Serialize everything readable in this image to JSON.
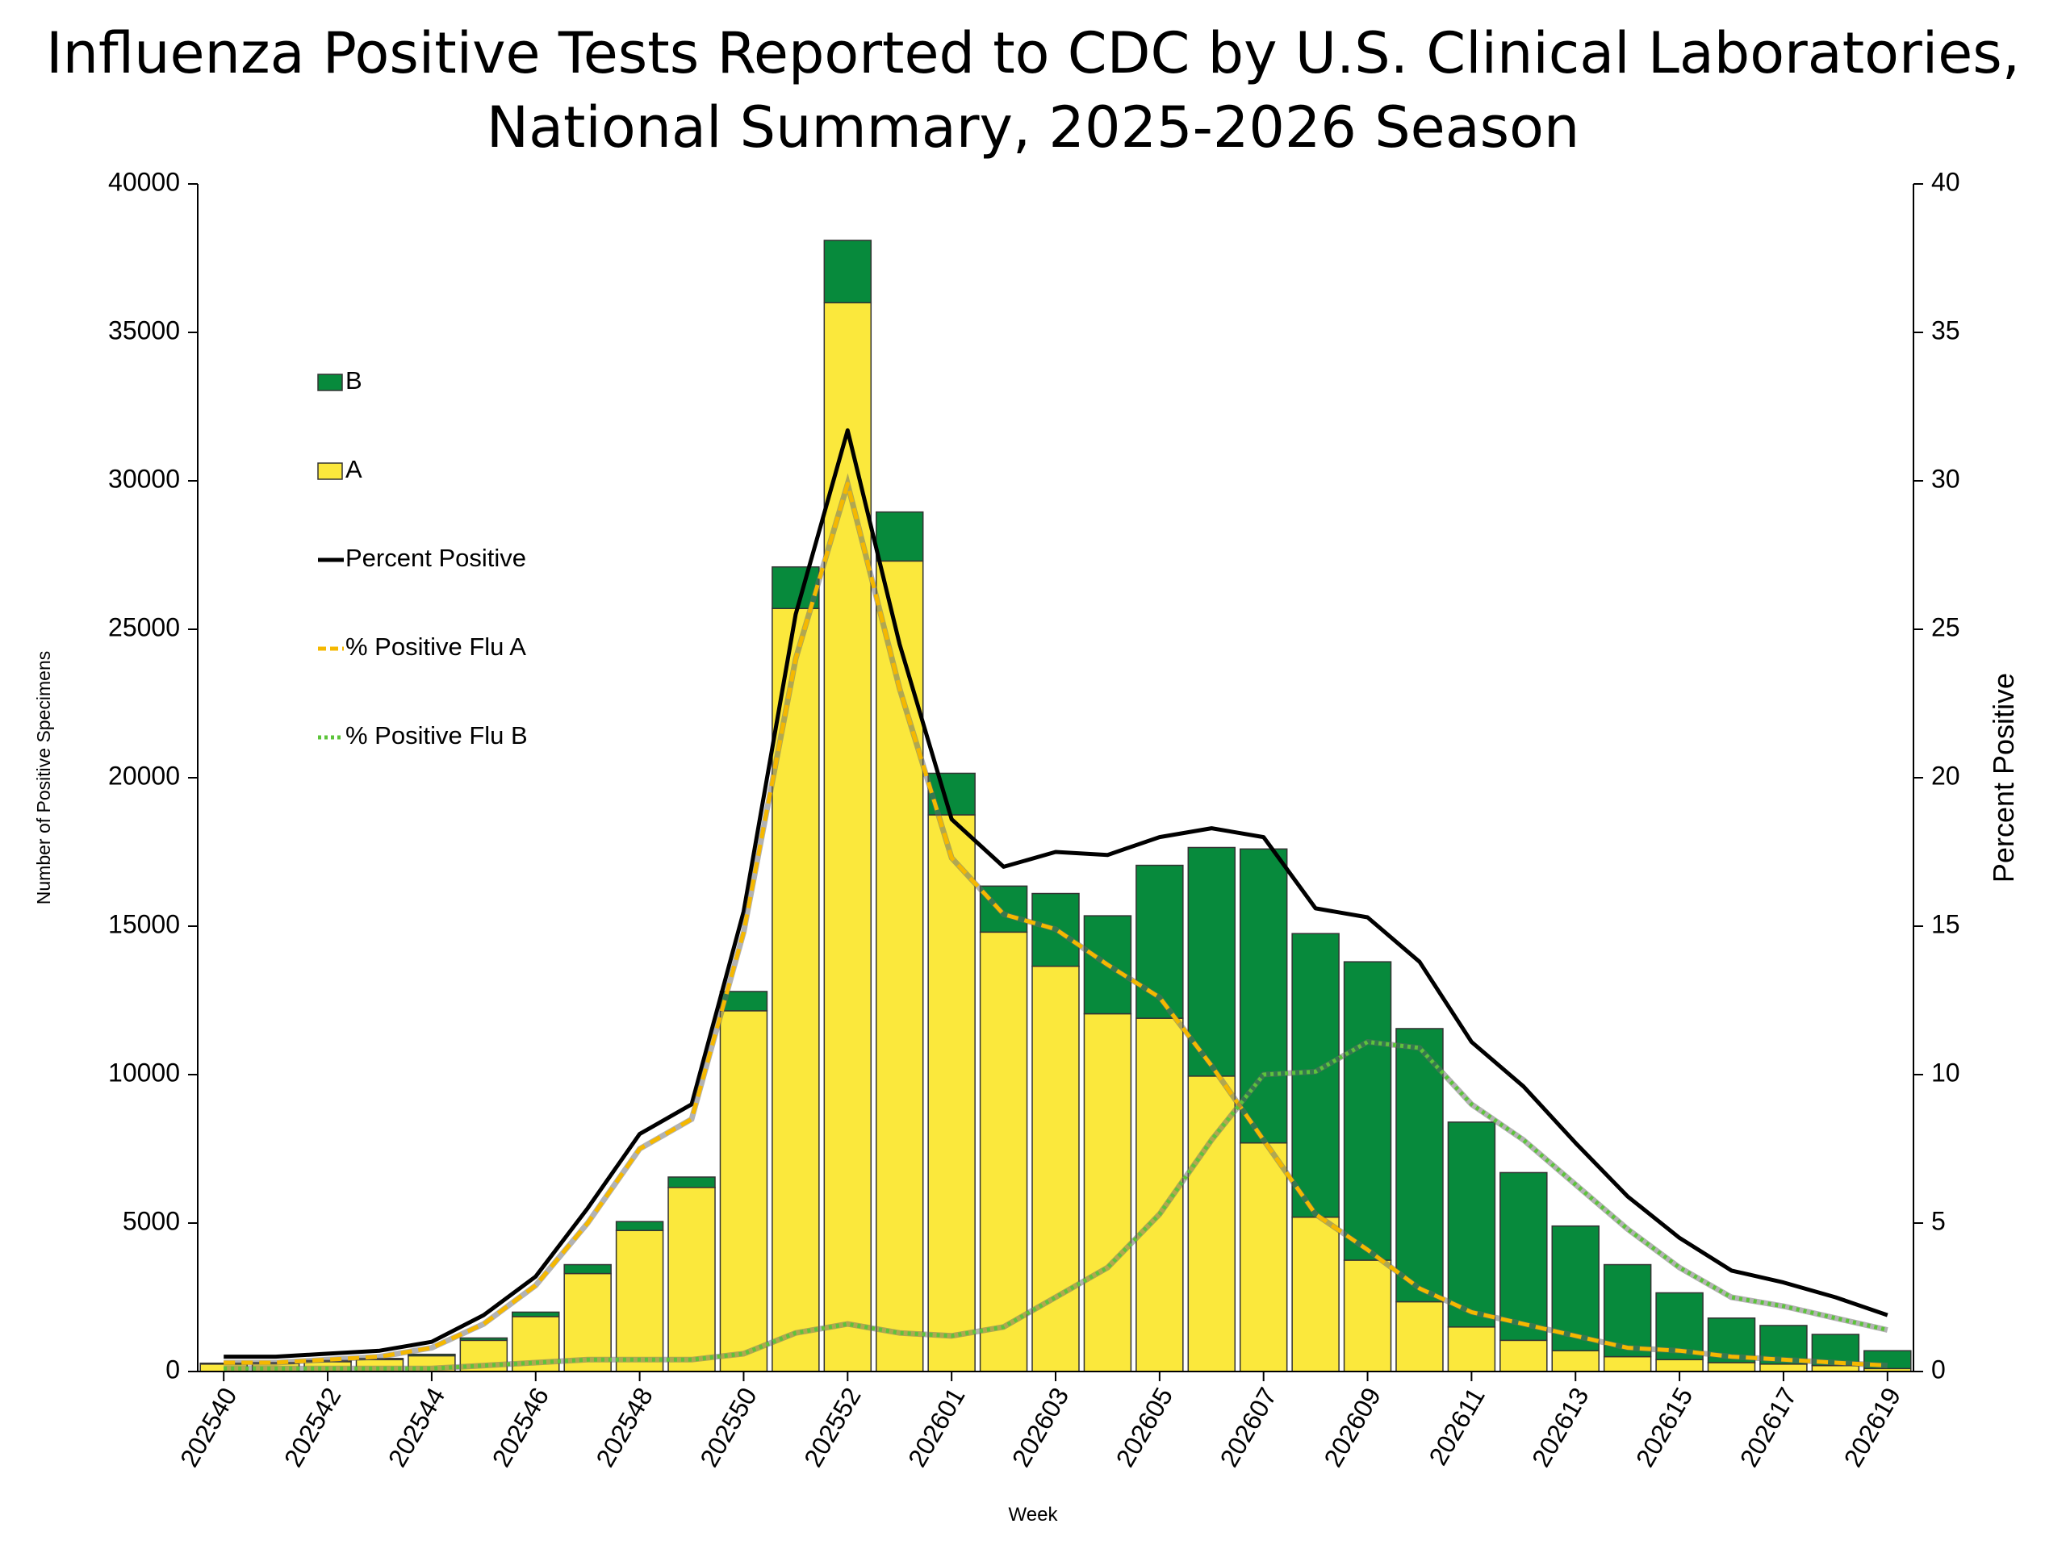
{
  "chart_data": {
    "type": "bar",
    "title": [
      "Influenza Positive Tests Reported to CDC by U.S. Clinical Laboratories,",
      "National Summary,  2025-2026 Season"
    ],
    "x_label": "Week",
    "y_label": "Number of Positive Specimens",
    "y2_label": "Percent Positive",
    "categories": [
      "202540",
      null,
      "202542",
      null,
      "202544",
      null,
      "202546",
      null,
      "202548",
      null,
      "202550",
      null,
      "202552",
      null,
      "202601",
      null,
      "202603",
      null,
      "202605",
      null,
      "202607",
      null,
      "202609",
      null,
      "202611",
      null,
      "202613",
      null,
      "202615",
      null,
      "202617",
      null,
      "202619"
    ],
    "ylim": [
      0,
      40000
    ],
    "yticks": [
      0,
      5000,
      10000,
      15000,
      20000,
      25000,
      30000,
      35000,
      40000
    ],
    "y2lim": [
      0,
      40
    ],
    "y2ticks": [
      0,
      5,
      10,
      15,
      20,
      25,
      30,
      35,
      40
    ],
    "series": [
      {
        "name": "B",
        "type": "bar",
        "color": "#078a3c",
        "values": [
          30,
          30,
          40,
          40,
          50,
          80,
          150,
          300,
          300,
          350,
          650,
          1400,
          2100,
          1650,
          1400,
          1550,
          2450,
          3300,
          5150,
          7700,
          9900,
          9550,
          10050,
          9200,
          6900,
          5650,
          4200,
          3100,
          2250,
          1500,
          1300,
          1050,
          600
        ]
      },
      {
        "name": "A",
        "type": "bar",
        "color": "#fbe83c",
        "values": [
          250,
          270,
          330,
          400,
          530,
          1050,
          1850,
          3300,
          4750,
          6200,
          12150,
          25700,
          36000,
          27300,
          18750,
          14800,
          13650,
          12050,
          11900,
          9950,
          7700,
          5200,
          3750,
          2350,
          1500,
          1050,
          700,
          500,
          400,
          300,
          250,
          200,
          100
        ]
      },
      {
        "name": "Percent Positive",
        "type": "line",
        "axis": "y2",
        "color": "#000000",
        "dash": "solid",
        "values": [
          0.5,
          0.5,
          0.6,
          0.7,
          1.0,
          1.9,
          3.2,
          5.5,
          8.0,
          9.0,
          15.5,
          25.5,
          31.7,
          24.5,
          18.6,
          17.0,
          17.5,
          17.4,
          18.0,
          18.3,
          18.0,
          15.6,
          15.3,
          13.8,
          11.1,
          9.6,
          7.7,
          5.9,
          4.5,
          3.4,
          3.0,
          2.5,
          1.9
        ]
      },
      {
        "name": "% Positive Flu A",
        "type": "line",
        "axis": "y2",
        "color": "#f5b800",
        "dash": "dashed",
        "values": [
          0.3,
          0.3,
          0.4,
          0.5,
          0.8,
          1.6,
          2.9,
          5.0,
          7.5,
          8.5,
          14.8,
          24.0,
          29.9,
          23.0,
          17.3,
          15.4,
          14.9,
          13.7,
          12.6,
          10.3,
          7.8,
          5.3,
          4.1,
          2.8,
          2.0,
          1.6,
          1.2,
          0.8,
          0.7,
          0.5,
          0.4,
          0.3,
          0.2
        ]
      },
      {
        "name": "% Positive Flu B",
        "type": "line",
        "axis": "y2",
        "color": "#5cc43a",
        "dash": "dotted",
        "values": [
          0.1,
          0.1,
          0.1,
          0.1,
          0.1,
          0.2,
          0.3,
          0.4,
          0.4,
          0.4,
          0.6,
          1.3,
          1.6,
          1.3,
          1.2,
          1.5,
          2.5,
          3.5,
          5.3,
          7.8,
          10.0,
          10.1,
          11.1,
          10.9,
          9.0,
          7.8,
          6.3,
          4.8,
          3.5,
          2.5,
          2.2,
          1.8,
          1.4
        ]
      }
    ]
  }
}
